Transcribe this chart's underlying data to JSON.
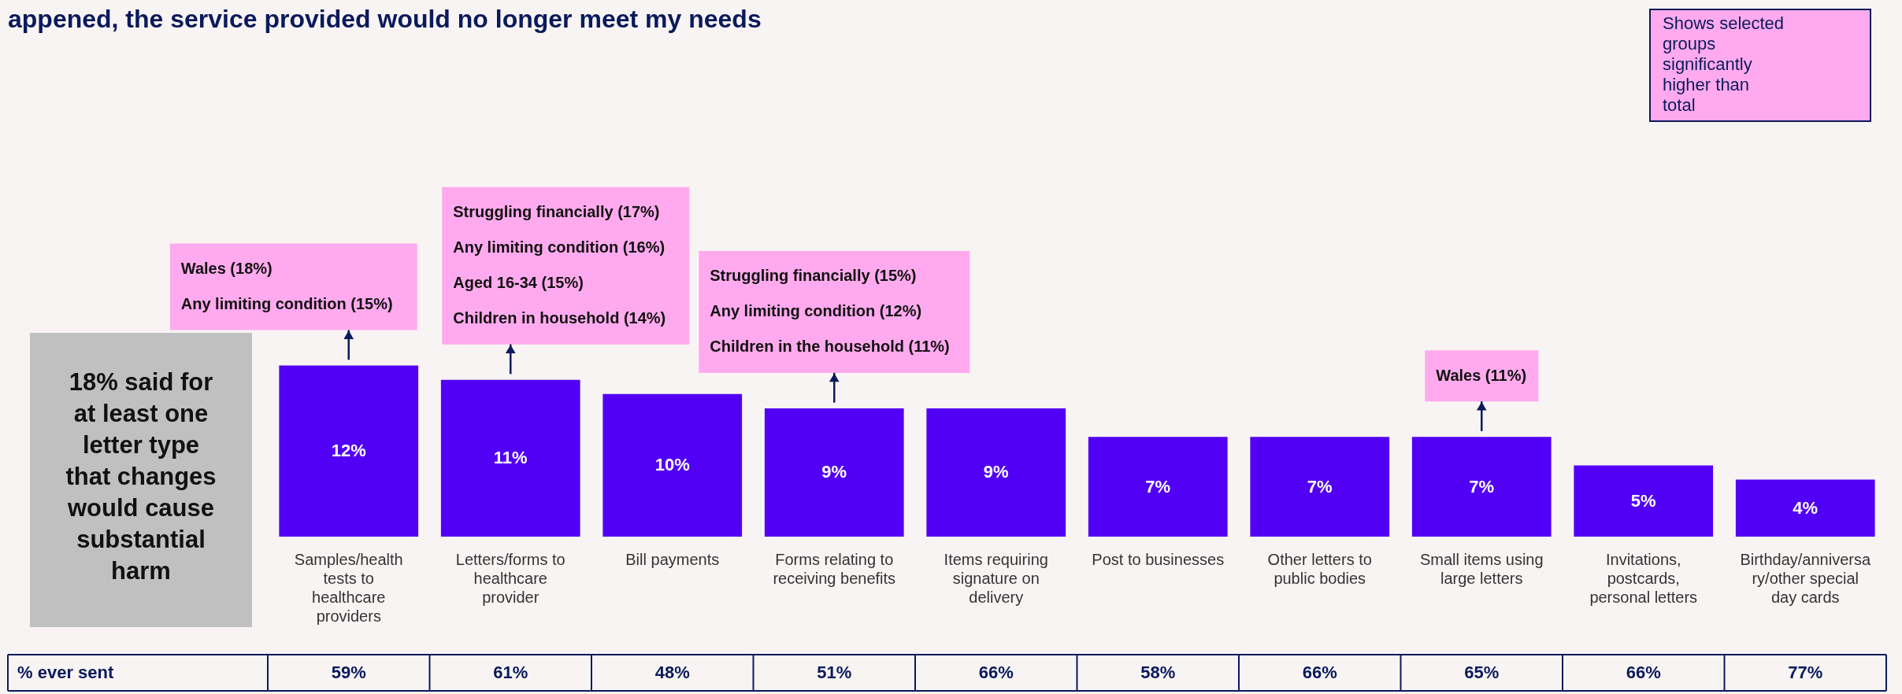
{
  "chart_data": {
    "type": "bar",
    "title": "appened, the service provided would no longer meet my needs",
    "categories": [
      "Samples/health tests to healthcare providers",
      "Letters/forms to healthcare provider",
      "Bill payments",
      "Forms relating to receiving benefits",
      "Items requiring signature on delivery",
      "Post to businesses",
      "Other letters to public bodies",
      "Small items using large letters",
      "Invitations, postcards, personal letters",
      "Birthday/anniversary/other special day cards"
    ],
    "values": [
      12,
      11,
      10,
      9,
      9,
      7,
      7,
      7,
      5,
      4
    ],
    "value_labels": [
      "12%",
      "11%",
      "10%",
      "9%",
      "9%",
      "7%",
      "7%",
      "7%",
      "5%",
      "4%"
    ],
    "color": "#5200f5",
    "annotations": [
      "Shows selected groups significantly higher than total",
      "18% said for at least one letter type that changes would cause substantial harm",
      "% ever sent",
      "59%",
      "61%",
      "48%",
      "51%",
      "66%",
      "58%",
      "66%",
      "65%",
      "66%",
      "77%",
      "Wales (18%)\nAny limiting condition (15%)",
      "Struggling financially (17%)\nAny limiting condition (16%)\nAged 16-34 (15%)\nChildren in household (14%)",
      "Struggling financially (15%)\nAny limiting condition (12%)\nChildren in the household (11%)",
      "Wales (11%)"
    ]
  }
}
